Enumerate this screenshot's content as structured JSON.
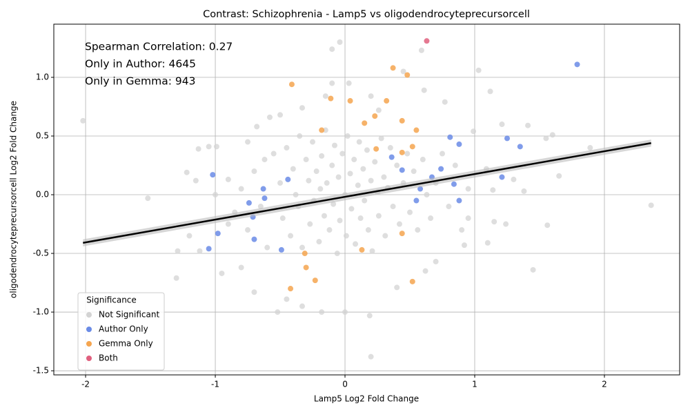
{
  "chart_data": {
    "type": "scatter",
    "title": "Contrast: Schizophrenia - Lamp5 vs oligodendrocyteprecursorcell",
    "x_label": "Lamp5 Log2 Fold Change",
    "y_label": "oligodendrocyteprecursorcell Log2 Fold Change",
    "annotations": [
      "Spearman Correlation: 0.27",
      "Only in Author: 4645",
      "Only in Gemma: 943"
    ],
    "legend_title": "Significance",
    "legend": "lower left",
    "grid": true,
    "xlim": [
      -2.245,
      2.58
    ],
    "ylim": [
      -1.535,
      1.453
    ],
    "xticks": [
      -2,
      -1,
      0,
      1,
      2
    ],
    "yticks": [
      -1.5,
      {
        "value": -1.0,
        "label": "-1.0"
      },
      -0.5,
      {
        "value": 0.0,
        "label": "0.0"
      },
      0.5,
      {
        "value": 1.0,
        "label": "1.0"
      }
    ],
    "series": [
      {
        "name": "Not Significant",
        "color": "#d3d3d3",
        "x": [
          -2.02,
          -1.52,
          -1.3,
          -1.29,
          -1.22,
          -1.2,
          -1.15,
          -1.13,
          -1.12,
          -1.05,
          -0.99,
          -0.95,
          -0.9,
          -0.8,
          -0.75,
          -0.7,
          -0.68,
          -0.58,
          -0.52,
          -0.5,
          -0.45,
          -0.33,
          -0.33,
          -0.18,
          -0.15,
          -0.1,
          -0.1,
          -0.04,
          0.0,
          0.03,
          0.2,
          0.19,
          0.2,
          0.26,
          0.4,
          0.45,
          0.59,
          0.61,
          0.62,
          0.7,
          0.77,
          0.92,
          0.95,
          0.99,
          1.03,
          1.09,
          1.1,
          1.12,
          1.14,
          1.15,
          1.21,
          1.24,
          1.3,
          1.38,
          1.41,
          1.45,
          1.55,
          1.56,
          1.6,
          1.65,
          1.89,
          2.36,
          -0.55,
          -0.5,
          -0.48,
          -0.45,
          -0.42,
          -0.4,
          -0.38,
          -0.36,
          -0.35,
          -0.33,
          -0.3,
          -0.28,
          -0.27,
          -0.25,
          -0.24,
          -0.22,
          -0.2,
          -0.19,
          -0.18,
          -0.16,
          -0.15,
          -0.14,
          -0.12,
          -0.1,
          -0.09,
          -0.08,
          -0.06,
          -0.05,
          -0.04,
          -0.02,
          0,
          0.01,
          0.02,
          0.04,
          0.05,
          0.07,
          0.08,
          0.1,
          0.11,
          0.12,
          0.14,
          0.15,
          0.17,
          0.18,
          0.2,
          0.21,
          0.23,
          0.25,
          0.26,
          0.28,
          0.3,
          0.31,
          0.33,
          0.35,
          0.37,
          0.4,
          0.42,
          0.45,
          0.48,
          0.5,
          0.53,
          0.56,
          0.6,
          0.63,
          0.66,
          0.7,
          0.75,
          0.8,
          -0.65,
          -0.7,
          -0.75,
          -0.8,
          -0.85,
          -0.6,
          -0.62,
          0.85,
          0.9,
          0.95,
          -0.9,
          -1.0
        ],
        "values": [
          0.63,
          -0.03,
          -0.71,
          -0.48,
          0.19,
          -0.35,
          0.12,
          0.39,
          -0.48,
          0.41,
          0.41,
          -0.67,
          0.13,
          -0.62,
          0.45,
          -0.83,
          0.58,
          0.66,
          -1.0,
          0.68,
          -0.89,
          0.74,
          -0.95,
          -1.0,
          0.84,
          1.24,
          0.95,
          1.3,
          -1.0,
          0.95,
          -1.38,
          -1.03,
          0.84,
          0.72,
          -0.79,
          1.05,
          1.23,
          0.89,
          -0.65,
          -0.57,
          0.79,
          -0.43,
          -0.2,
          0.54,
          1.06,
          0.22,
          -0.41,
          0.88,
          0.04,
          -0.23,
          0.6,
          -0.25,
          0.13,
          0.03,
          0.59,
          -0.64,
          0.48,
          -0.26,
          0.51,
          0.16,
          0.4,
          -0.09,
          0.35,
          0.1,
          -0.2,
          0.4,
          -0.35,
          0.22,
          0.0,
          -0.1,
          0.5,
          -0.45,
          0.3,
          0.12,
          -0.25,
          0.45,
          -0.05,
          0.2,
          -0.4,
          0.05,
          0.33,
          -0.18,
          0.55,
          0.1,
          -0.3,
          0.25,
          -0.08,
          0.42,
          -0.5,
          0.15,
          -0.22,
          0.35,
          0,
          -0.35,
          0.5,
          0.18,
          -0.12,
          0.3,
          -0.42,
          0.08,
          0.45,
          -0.2,
          0.22,
          -0.05,
          0.38,
          -0.3,
          0.12,
          -0.48,
          0.28,
          0.02,
          -0.18,
          0.48,
          0.15,
          -0.35,
          0.06,
          0.4,
          -0.1,
          0.25,
          -0.25,
          0.1,
          0.35,
          -0.15,
          0.2,
          -0.3,
          0.3,
          0,
          -0.2,
          0.1,
          0.35,
          -0.1,
          -0.1,
          0.2,
          -0.3,
          0.05,
          -0.15,
          -0.45,
          0.3,
          0.25,
          -0.3,
          0.05,
          -0.25,
          0
        ]
      },
      {
        "name": "Author Only",
        "color": "#6a8be6",
        "x": [
          1.79,
          1.25,
          1.35,
          1.21,
          0.81,
          0.88,
          0.88,
          0.84,
          0.74,
          0.67,
          0.58,
          0.55,
          -1.02,
          -0.98,
          -1.05,
          -0.74,
          -0.71,
          -0.7,
          -0.63,
          -0.62,
          -0.49,
          -0.44,
          0.36,
          0.44
        ],
        "values": [
          1.11,
          0.48,
          0.41,
          0.15,
          0.49,
          0.43,
          -0.05,
          0.09,
          0.22,
          0.15,
          0.05,
          -0.05,
          0.17,
          -0.33,
          -0.46,
          -0.07,
          -0.19,
          -0.38,
          0.05,
          -0.03,
          -0.47,
          0.13,
          0.32,
          0.21
        ]
      },
      {
        "name": "Gemma Only",
        "color": "#f5a54f",
        "x": [
          0.37,
          0.48,
          -0.41,
          -0.11,
          0.04,
          0.32,
          0.23,
          0.15,
          0.55,
          0.44,
          0.52,
          0.24,
          0.44,
          -0.42,
          -0.23,
          0.52,
          -0.3,
          -0.31,
          0.13,
          0.44,
          -0.18
        ],
        "values": [
          1.08,
          1.02,
          0.94,
          0.82,
          0.8,
          0.8,
          0.67,
          0.61,
          0.55,
          0.63,
          0.41,
          0.39,
          0.36,
          -0.8,
          -0.73,
          -0.74,
          -0.62,
          -0.5,
          -0.47,
          -0.33,
          0.55
        ]
      },
      {
        "name": "Both",
        "color": "#e0607e",
        "x": [
          0.63
        ],
        "values": [
          1.31
        ]
      }
    ],
    "regression": {
      "color": "#000000",
      "x": [
        -2.02,
        2.36
      ],
      "values": [
        -0.41,
        0.44
      ],
      "ci_lower": [
        -0.44,
        0.41
      ],
      "ci_upper": [
        -0.38,
        0.47
      ]
    }
  }
}
